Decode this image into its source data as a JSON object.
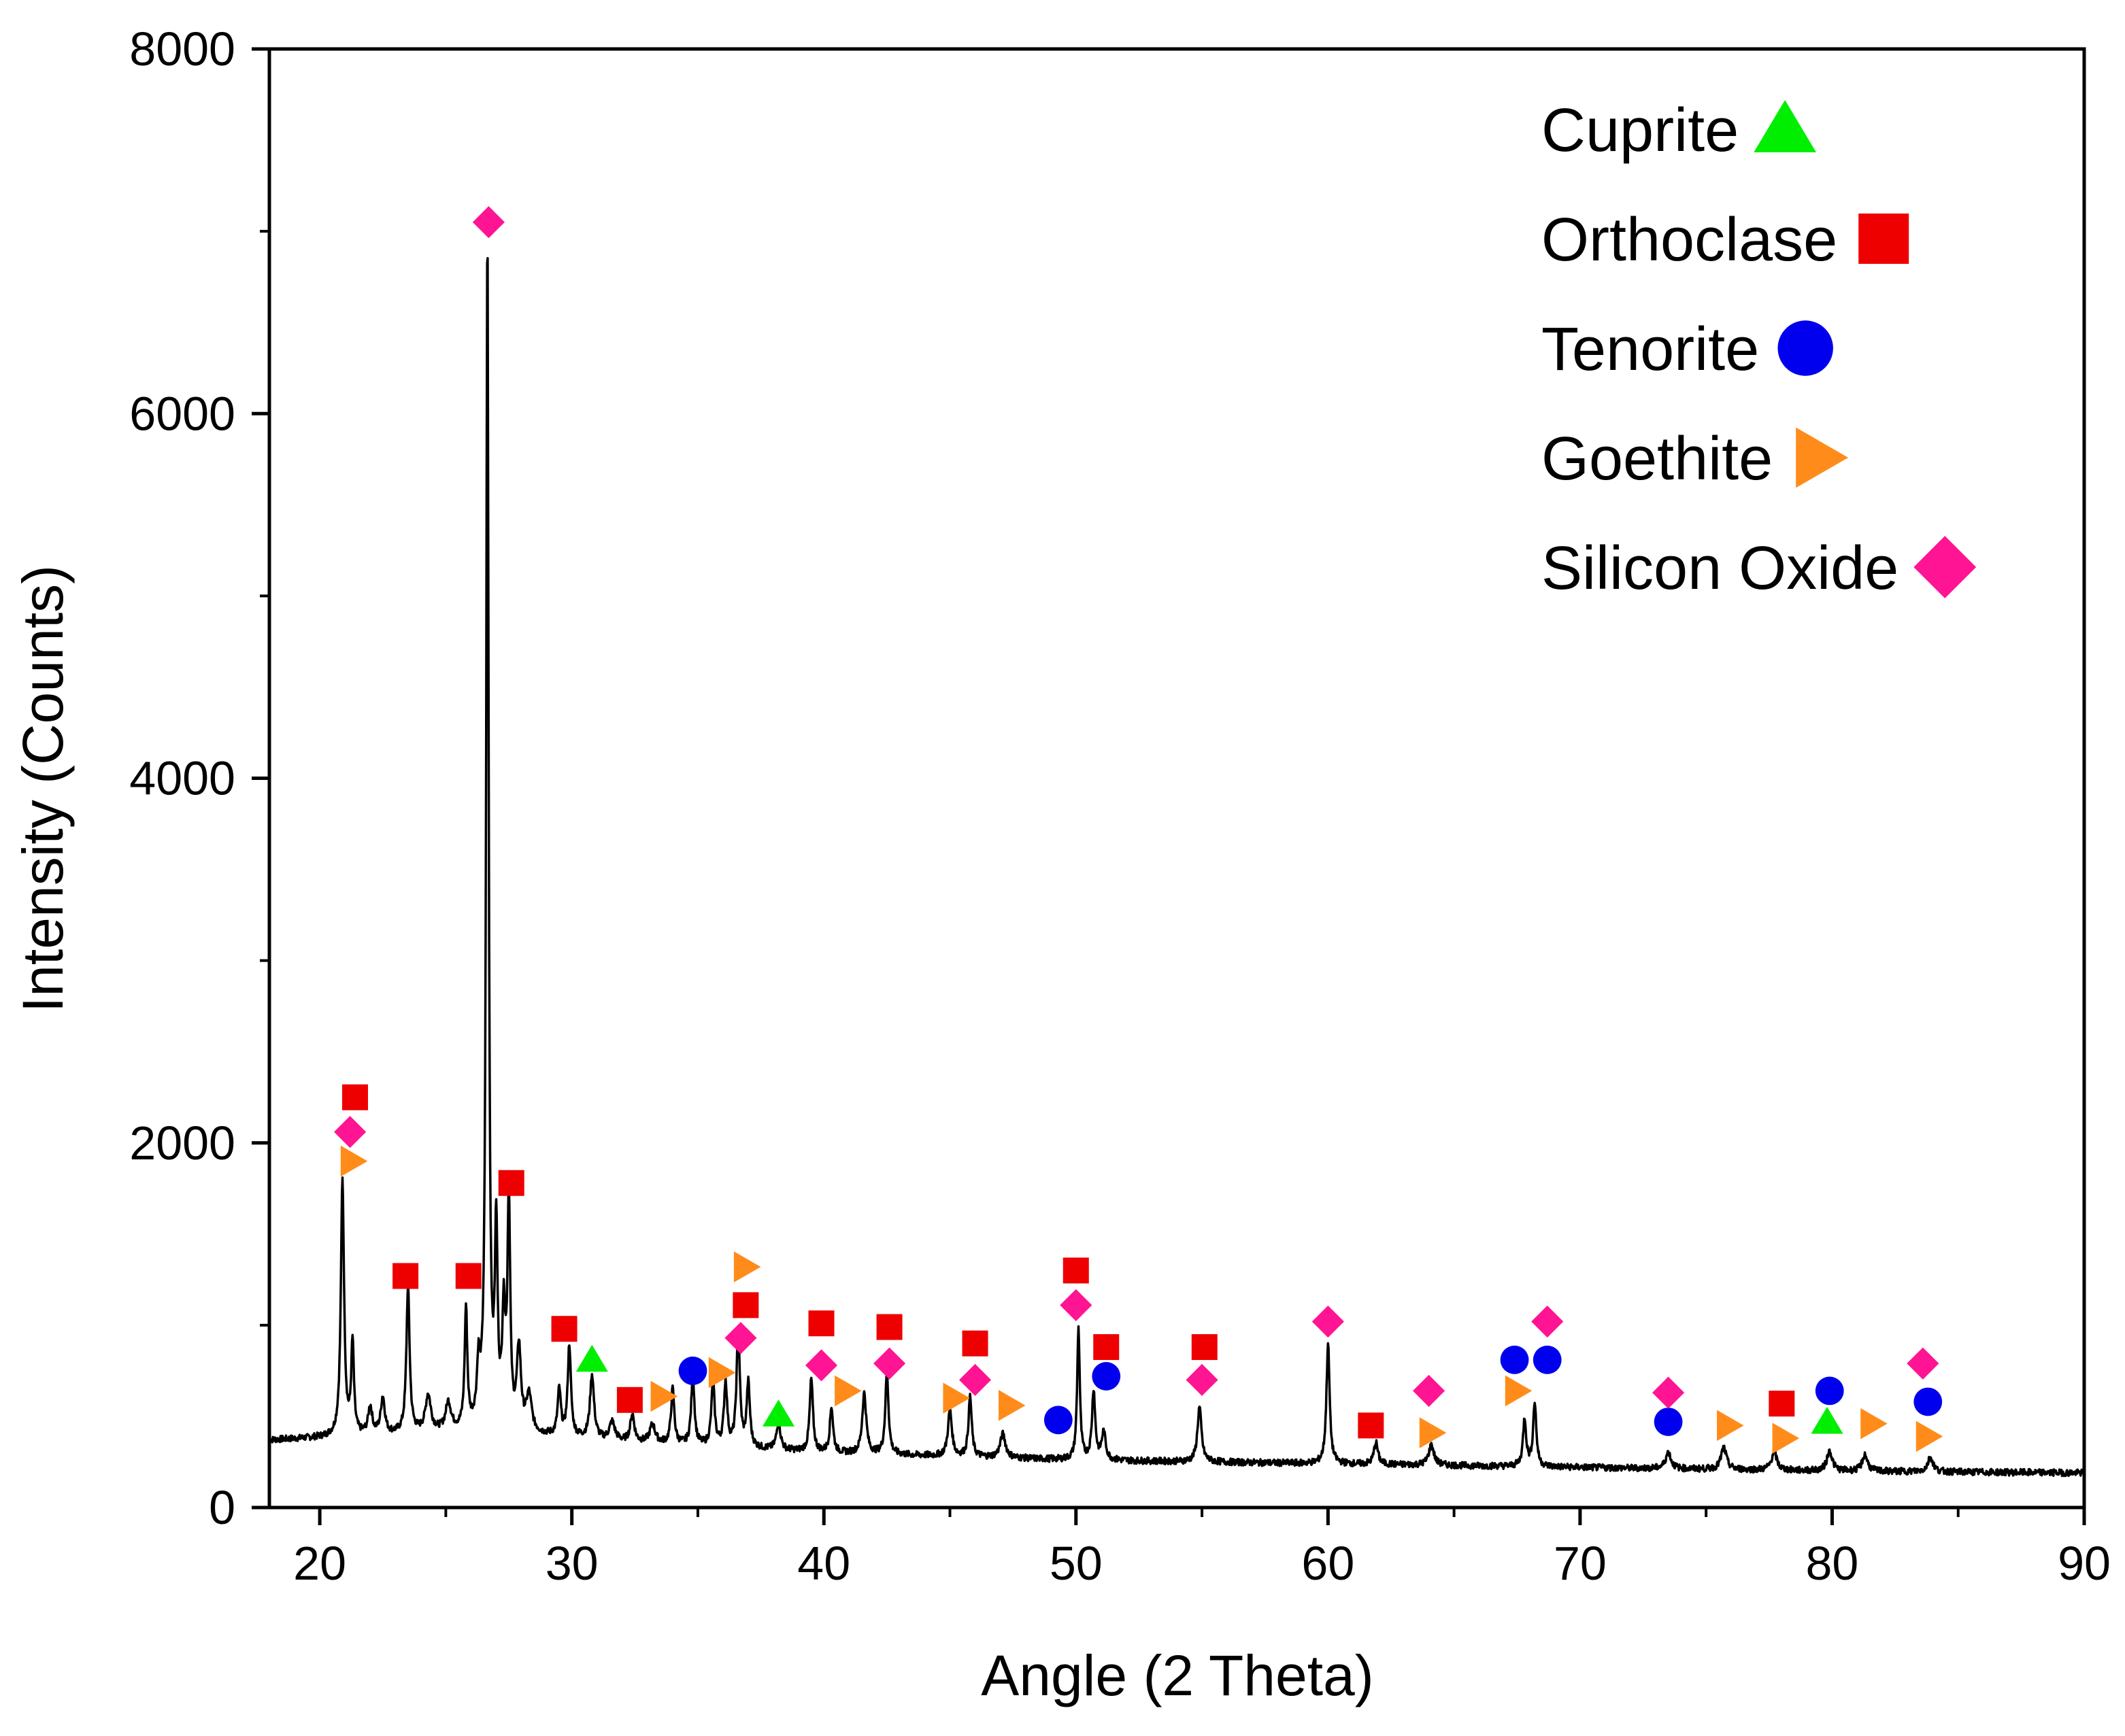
{
  "chart_data": {
    "type": "scatter",
    "title": "",
    "xlabel": "Angle (2 Theta)",
    "ylabel": "Intensity (Counts)",
    "xlim": [
      18,
      90
    ],
    "ylim": [
      0,
      8000
    ],
    "xticks": [
      20,
      30,
      40,
      50,
      60,
      70,
      80,
      90
    ],
    "yticks": [
      0,
      2000,
      4000,
      6000,
      8000
    ],
    "legend_position": "top-right",
    "pattern": {
      "name": "XRD pattern",
      "color": "#000000",
      "baseline": [
        [
          18,
          370
        ],
        [
          26,
          420
        ],
        [
          32,
          360
        ],
        [
          40,
          300
        ],
        [
          50,
          260
        ],
        [
          60,
          240
        ],
        [
          70,
          220
        ],
        [
          80,
          200
        ],
        [
          90,
          190
        ]
      ],
      "peaks": [
        [
          20.9,
          1400,
          0.12
        ],
        [
          21.3,
          500,
          0.1
        ],
        [
          22.0,
          150,
          0.15
        ],
        [
          22.5,
          200,
          0.15
        ],
        [
          23.5,
          800,
          0.12
        ],
        [
          24.3,
          200,
          0.2
        ],
        [
          25.1,
          150,
          0.2
        ],
        [
          25.8,
          650,
          0.1
        ],
        [
          26.3,
          300,
          0.12
        ],
        [
          26.65,
          6550,
          0.09
        ],
        [
          27.0,
          1050,
          0.1
        ],
        [
          27.3,
          600,
          0.12
        ],
        [
          27.5,
          1250,
          0.1
        ],
        [
          27.9,
          450,
          0.15
        ],
        [
          28.3,
          200,
          0.2
        ],
        [
          29.5,
          250,
          0.12
        ],
        [
          29.9,
          500,
          0.12
        ],
        [
          30.8,
          350,
          0.15
        ],
        [
          31.6,
          100,
          0.2
        ],
        [
          32.4,
          150,
          0.15
        ],
        [
          33.2,
          100,
          0.2
        ],
        [
          34.0,
          300,
          0.12
        ],
        [
          34.8,
          380,
          0.12
        ],
        [
          35.6,
          350,
          0.12
        ],
        [
          36.1,
          350,
          0.12
        ],
        [
          36.6,
          650,
          0.12
        ],
        [
          37.0,
          350,
          0.12
        ],
        [
          38.2,
          150,
          0.15
        ],
        [
          39.5,
          400,
          0.12
        ],
        [
          40.3,
          250,
          0.12
        ],
        [
          41.6,
          330,
          0.15
        ],
        [
          42.5,
          450,
          0.12
        ],
        [
          45.0,
          250,
          0.15
        ],
        [
          45.8,
          330,
          0.12
        ],
        [
          47.1,
          130,
          0.2
        ],
        [
          50.1,
          720,
          0.1
        ],
        [
          50.7,
          380,
          0.12
        ],
        [
          51.1,
          150,
          0.15
        ],
        [
          54.9,
          300,
          0.15
        ],
        [
          60.0,
          660,
          0.12
        ],
        [
          61.9,
          120,
          0.15
        ],
        [
          64.1,
          110,
          0.2
        ],
        [
          67.8,
          260,
          0.12
        ],
        [
          68.2,
          350,
          0.12
        ],
        [
          73.5,
          90,
          0.2
        ],
        [
          75.7,
          120,
          0.2
        ],
        [
          77.7,
          100,
          0.2
        ],
        [
          79.9,
          110,
          0.2
        ],
        [
          81.3,
          90,
          0.2
        ],
        [
          83.9,
          80,
          0.2
        ]
      ],
      "noise_amplitude": 18
    },
    "series": [
      {
        "name": "Cuprite",
        "shape": "triangle-up",
        "color": "#00ee00",
        "points": [
          [
            30.8,
            810
          ],
          [
            38.2,
            510
          ],
          [
            79.8,
            470
          ]
        ]
      },
      {
        "name": "Orthoclase",
        "shape": "square",
        "color": "#ee0000",
        "points": [
          [
            21.4,
            2250
          ],
          [
            23.4,
            1270
          ],
          [
            25.9,
            1270
          ],
          [
            27.6,
            1780
          ],
          [
            29.7,
            980
          ],
          [
            32.3,
            590
          ],
          [
            36.9,
            1110
          ],
          [
            39.9,
            1010
          ],
          [
            42.6,
            990
          ],
          [
            46.0,
            900
          ],
          [
            50.0,
            1300
          ],
          [
            51.2,
            880
          ],
          [
            55.1,
            880
          ],
          [
            61.7,
            450
          ],
          [
            78.0,
            570
          ]
        ]
      },
      {
        "name": "Tenorite",
        "shape": "circle",
        "color": "#0000ee",
        "points": [
          [
            34.8,
            750
          ],
          [
            49.3,
            480
          ],
          [
            51.2,
            720
          ],
          [
            67.4,
            810
          ],
          [
            68.7,
            810
          ],
          [
            73.5,
            470
          ],
          [
            79.9,
            640
          ],
          [
            83.8,
            580
          ]
        ]
      },
      {
        "name": "Goethite",
        "shape": "triangle-right",
        "color": "#ff8c1a",
        "points": [
          [
            21.3,
            1900
          ],
          [
            33.6,
            610
          ],
          [
            35.9,
            740
          ],
          [
            36.9,
            1320
          ],
          [
            40.9,
            640
          ],
          [
            45.2,
            600
          ],
          [
            47.4,
            560
          ],
          [
            64.1,
            410
          ],
          [
            67.5,
            640
          ],
          [
            75.9,
            450
          ],
          [
            78.1,
            380
          ],
          [
            81.6,
            460
          ],
          [
            83.8,
            390
          ]
        ]
      },
      {
        "name": "Silicon Oxide",
        "shape": "diamond",
        "color": "#ff1493",
        "points": [
          [
            21.2,
            2060
          ],
          [
            26.7,
            7050
          ],
          [
            36.7,
            930
          ],
          [
            39.9,
            780
          ],
          [
            42.6,
            790
          ],
          [
            46.0,
            700
          ],
          [
            50.0,
            1110
          ],
          [
            55.0,
            700
          ],
          [
            60.0,
            1020
          ],
          [
            64.0,
            640
          ],
          [
            68.7,
            1020
          ],
          [
            73.5,
            630
          ],
          [
            83.6,
            790
          ]
        ]
      }
    ]
  }
}
